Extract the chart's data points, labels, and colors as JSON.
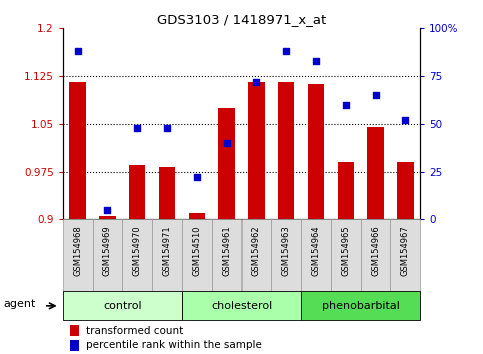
{
  "title": "GDS3103 / 1418971_x_at",
  "samples": [
    "GSM154968",
    "GSM154969",
    "GSM154970",
    "GSM154971",
    "GSM154510",
    "GSM154961",
    "GSM154962",
    "GSM154963",
    "GSM154964",
    "GSM154965",
    "GSM154966",
    "GSM154967"
  ],
  "transformed_count": [
    1.115,
    0.905,
    0.985,
    0.983,
    0.91,
    1.075,
    1.115,
    1.115,
    1.112,
    0.99,
    1.045,
    0.99
  ],
  "percentile_rank": [
    88,
    5,
    48,
    48,
    22,
    40,
    72,
    88,
    83,
    60,
    65,
    52
  ],
  "groups": [
    {
      "name": "control",
      "start": 0,
      "end": 3,
      "color": "#ccffcc"
    },
    {
      "name": "cholesterol",
      "start": 4,
      "end": 7,
      "color": "#aaffaa"
    },
    {
      "name": "phenobarbital",
      "start": 8,
      "end": 11,
      "color": "#55dd55"
    }
  ],
  "bar_color": "#cc0000",
  "dot_color": "#0000cc",
  "ylim_left": [
    0.9,
    1.2
  ],
  "ylim_right": [
    0,
    100
  ],
  "yticks_left": [
    0.9,
    0.975,
    1.05,
    1.125,
    1.2
  ],
  "yticks_right": [
    0,
    25,
    50,
    75,
    100
  ],
  "ytick_labels_left": [
    "0.9",
    "0.975",
    "1.05",
    "1.125",
    "1.2"
  ],
  "ytick_labels_right": [
    "0",
    "25",
    "50",
    "75",
    "100%"
  ],
  "hlines": [
    0.975,
    1.05,
    1.125
  ],
  "bar_width": 0.55,
  "background_color": "#ffffff",
  "legend_red_label": "transformed count",
  "legend_blue_label": "percentile rank within the sample",
  "agent_label": "agent",
  "cell_bg": "#dddddd",
  "cell_border": "#999999"
}
